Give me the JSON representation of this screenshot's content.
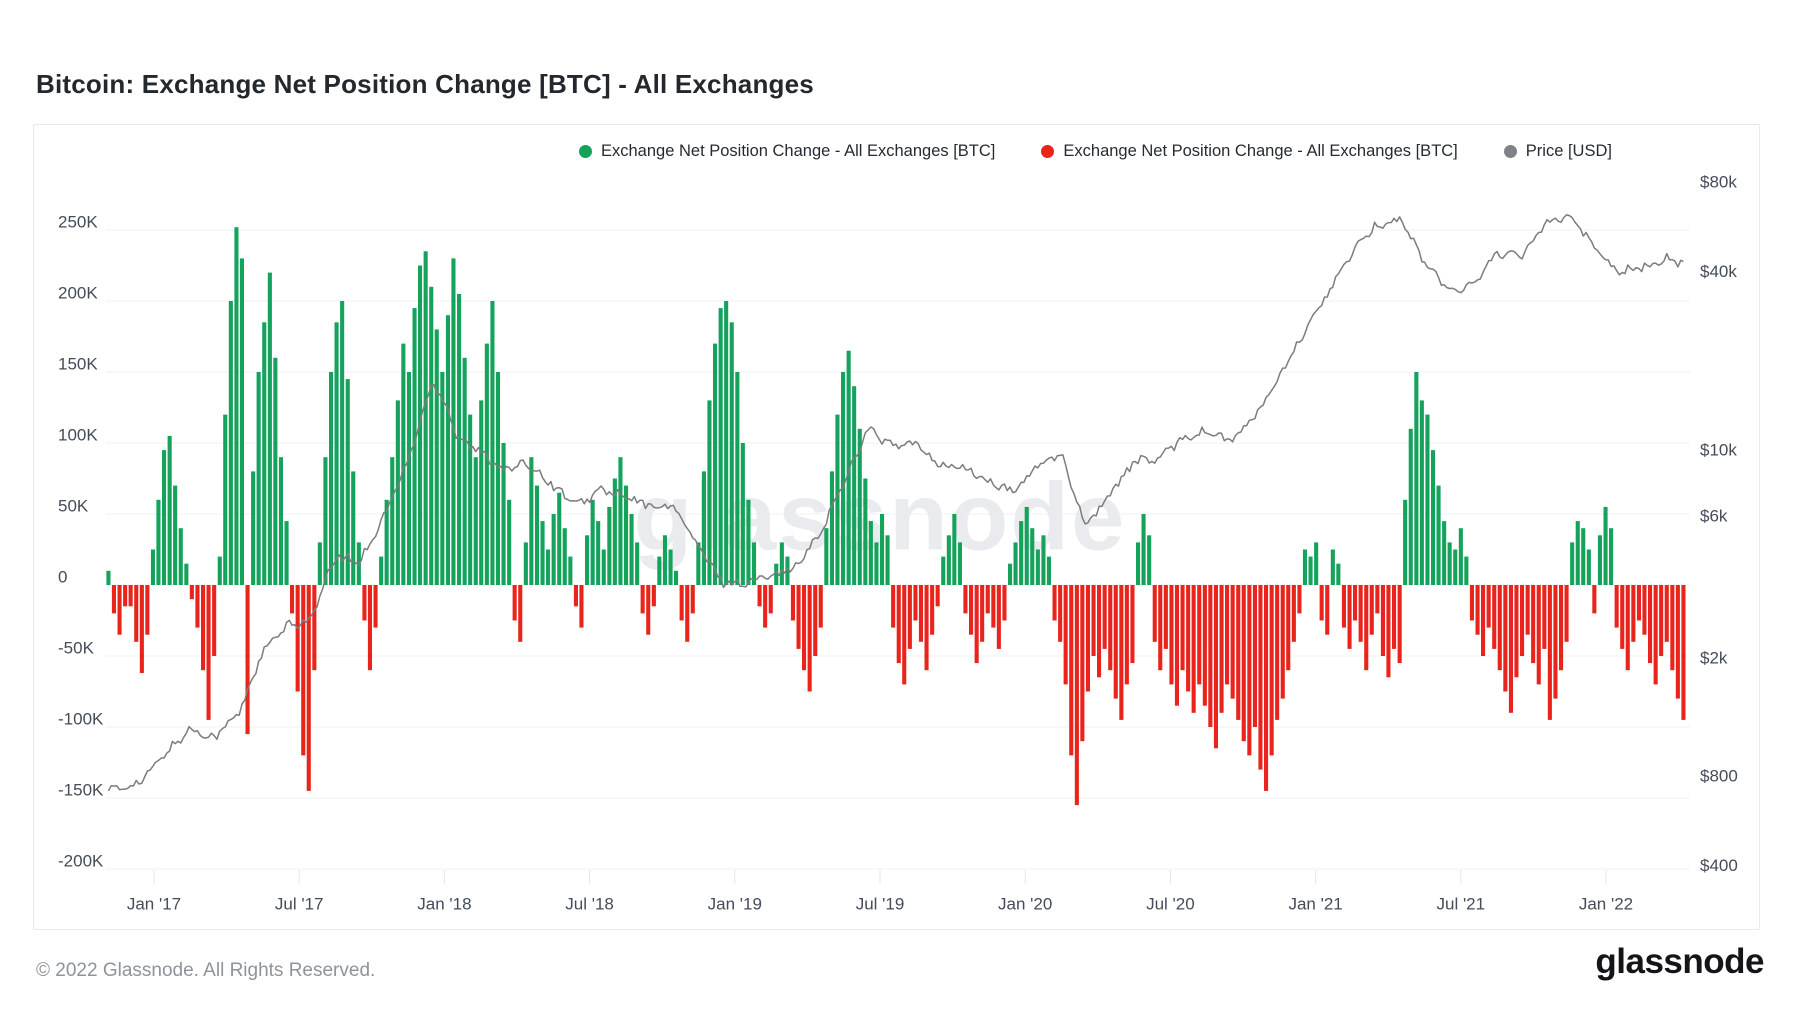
{
  "page": {
    "title": "Bitcoin: Exchange Net Position Change [BTC] - All Exchanges"
  },
  "legend": {
    "items": [
      {
        "label": "Exchange Net Position Change - All Exchanges [BTC]",
        "color": "#15a35c"
      },
      {
        "label": "Exchange Net Position Change - All Exchanges [BTC]",
        "color": "#e8241d"
      },
      {
        "label": "Price [USD]",
        "color": "#7f8388"
      }
    ]
  },
  "watermark": "glassnode",
  "footer": {
    "copyright": "© 2022 Glassnode. All Rights Reserved.",
    "brand": "glassnode"
  },
  "chart_data": {
    "type": "bar+line",
    "title": "Bitcoin: Exchange Net Position Change [BTC] - All Exchanges",
    "grid": true,
    "legend_position": "top",
    "left_axis": {
      "scale": "linear",
      "unit": "BTC",
      "range_k": [
        -200,
        250
      ],
      "ticks": [
        {
          "value": 250,
          "label": "250K"
        },
        {
          "value": 200,
          "label": "200K"
        },
        {
          "value": 150,
          "label": "150K"
        },
        {
          "value": 100,
          "label": "100K"
        },
        {
          "value": 50,
          "label": "50K"
        },
        {
          "value": 0,
          "label": "0"
        },
        {
          "value": -50,
          "label": "-50K"
        },
        {
          "value": -100,
          "label": "-100K"
        },
        {
          "value": -150,
          "label": "-150K"
        },
        {
          "value": -200,
          "label": "-200K"
        }
      ]
    },
    "right_axis": {
      "scale": "log",
      "unit": "USD",
      "ticks": [
        {
          "value": 80000,
          "label": "$80k"
        },
        {
          "value": 40000,
          "label": "$40k"
        },
        {
          "value": 10000,
          "label": "$10k"
        },
        {
          "value": 6000,
          "label": "$6k"
        },
        {
          "value": 2000,
          "label": "$2k"
        },
        {
          "value": 800,
          "label": "$800"
        },
        {
          "value": 400,
          "label": "$400"
        }
      ]
    },
    "x_axis": {
      "ticks": [
        {
          "t": 2017.0,
          "label": "Jan '17"
        },
        {
          "t": 2017.5,
          "label": "Jul '17"
        },
        {
          "t": 2018.0,
          "label": "Jan '18"
        },
        {
          "t": 2018.5,
          "label": "Jul '18"
        },
        {
          "t": 2019.0,
          "label": "Jan '19"
        },
        {
          "t": 2019.5,
          "label": "Jul '19"
        },
        {
          "t": 2020.0,
          "label": "Jan '20"
        },
        {
          "t": 2020.5,
          "label": "Jul '20"
        },
        {
          "t": 2021.0,
          "label": "Jan '21"
        },
        {
          "t": 2021.5,
          "label": "Jul '21"
        },
        {
          "t": 2022.0,
          "label": "Jan '22"
        }
      ]
    },
    "series": [
      {
        "name": "Exchange Net Position Change - All Exchanges [BTC]",
        "type": "bar",
        "axis": "left",
        "unit": "thousand BTC per week",
        "positive_color": "#15a35c",
        "negative_color": "#e8241d",
        "start_year": 2016.843,
        "interval_years": 0.019165,
        "values_k_btc": [
          10,
          -20,
          -35,
          -15,
          -15,
          -40,
          -62,
          -35,
          25,
          60,
          95,
          105,
          70,
          40,
          15,
          -10,
          -30,
          -60,
          -95,
          -50,
          20,
          120,
          200,
          252,
          230,
          -105,
          80,
          150,
          185,
          220,
          160,
          90,
          45,
          -20,
          -75,
          -120,
          -145,
          -60,
          30,
          90,
          150,
          185,
          200,
          145,
          80,
          30,
          -25,
          -60,
          -30,
          20,
          60,
          90,
          130,
          170,
          150,
          195,
          225,
          235,
          210,
          180,
          150,
          190,
          230,
          205,
          160,
          120,
          90,
          130,
          170,
          200,
          150,
          100,
          60,
          -25,
          -40,
          30,
          90,
          70,
          45,
          25,
          50,
          65,
          40,
          20,
          -15,
          -30,
          35,
          60,
          45,
          25,
          55,
          75,
          90,
          70,
          50,
          30,
          -20,
          -35,
          -15,
          20,
          35,
          25,
          10,
          -25,
          -40,
          -20,
          30,
          80,
          130,
          170,
          195,
          200,
          185,
          150,
          100,
          60,
          30,
          -15,
          -30,
          -20,
          15,
          30,
          20,
          -25,
          -45,
          -60,
          -75,
          -50,
          -30,
          40,
          80,
          120,
          150,
          165,
          140,
          110,
          75,
          45,
          30,
          50,
          35,
          -30,
          -55,
          -70,
          -45,
          -25,
          -40,
          -60,
          -35,
          -15,
          20,
          35,
          50,
          30,
          -20,
          -35,
          -55,
          -40,
          -20,
          -30,
          -45,
          -25,
          15,
          30,
          45,
          55,
          40,
          25,
          35,
          20,
          -25,
          -40,
          -70,
          -120,
          -155,
          -110,
          -75,
          -50,
          -65,
          -45,
          -60,
          -80,
          -95,
          -70,
          -55,
          30,
          50,
          35,
          -40,
          -60,
          -45,
          -70,
          -85,
          -60,
          -75,
          -90,
          -70,
          -85,
          -100,
          -115,
          -90,
          -70,
          -80,
          -95,
          -110,
          -120,
          -100,
          -130,
          -145,
          -120,
          -95,
          -80,
          -60,
          -40,
          -20,
          25,
          20,
          30,
          -25,
          -35,
          25,
          15,
          -30,
          -45,
          -25,
          -40,
          -60,
          -35,
          -20,
          -50,
          -65,
          -45,
          -55,
          60,
          110,
          150,
          130,
          120,
          95,
          70,
          45,
          30,
          25,
          40,
          20,
          -25,
          -35,
          -50,
          -30,
          -45,
          -60,
          -75,
          -90,
          -65,
          -50,
          -35,
          -55,
          -70,
          -45,
          -95,
          -80,
          -60,
          -40,
          30,
          45,
          40,
          25,
          -20,
          35,
          55,
          40,
          -30,
          -45,
          -60,
          -40,
          -25,
          -35,
          -55,
          -70,
          -50,
          -40,
          -60,
          -80,
          -95
        ]
      },
      {
        "name": "Price [USD]",
        "type": "line",
        "axis": "right",
        "color": "#7c7c7c",
        "anchors_year_usd": [
          [
            2016.875,
            720
          ],
          [
            2016.958,
            770
          ],
          [
            2017.042,
            960
          ],
          [
            2017.125,
            1150
          ],
          [
            2017.208,
            1080
          ],
          [
            2017.292,
            1300
          ],
          [
            2017.375,
            2100
          ],
          [
            2017.458,
            2550
          ],
          [
            2017.542,
            2700
          ],
          [
            2017.625,
            4400
          ],
          [
            2017.708,
            4200
          ],
          [
            2017.792,
            6000
          ],
          [
            2017.875,
            9200
          ],
          [
            2017.958,
            17000
          ],
          [
            2018.01,
            14000
          ],
          [
            2018.042,
            11200
          ],
          [
            2018.125,
            9800
          ],
          [
            2018.208,
            8600
          ],
          [
            2018.292,
            9000
          ],
          [
            2018.375,
            7600
          ],
          [
            2018.458,
            6500
          ],
          [
            2018.542,
            7400
          ],
          [
            2018.625,
            6900
          ],
          [
            2018.708,
            6500
          ],
          [
            2018.792,
            6450
          ],
          [
            2018.875,
            4700
          ],
          [
            2018.958,
            3600
          ],
          [
            2019.042,
            3550
          ],
          [
            2019.125,
            3850
          ],
          [
            2019.208,
            4000
          ],
          [
            2019.292,
            5200
          ],
          [
            2019.375,
            7800
          ],
          [
            2019.458,
            11800
          ],
          [
            2019.542,
            10300
          ],
          [
            2019.625,
            10500
          ],
          [
            2019.708,
            8900
          ],
          [
            2019.792,
            8700
          ],
          [
            2019.875,
            7800
          ],
          [
            2019.958,
            7200
          ],
          [
            2020.042,
            8900
          ],
          [
            2020.125,
            9600
          ],
          [
            2020.208,
            5600
          ],
          [
            2020.292,
            7100
          ],
          [
            2020.375,
            9200
          ],
          [
            2020.458,
            9300
          ],
          [
            2020.542,
            11000
          ],
          [
            2020.625,
            11600
          ],
          [
            2020.708,
            10700
          ],
          [
            2020.792,
            13000
          ],
          [
            2020.875,
            17500
          ],
          [
            2020.958,
            24500
          ],
          [
            2021.042,
            34000
          ],
          [
            2021.125,
            46000
          ],
          [
            2021.208,
            57000
          ],
          [
            2021.292,
            60000
          ],
          [
            2021.375,
            43000
          ],
          [
            2021.458,
            34500
          ],
          [
            2021.542,
            36000
          ],
          [
            2021.625,
            46500
          ],
          [
            2021.708,
            44500
          ],
          [
            2021.792,
            59000
          ],
          [
            2021.875,
            62000
          ],
          [
            2021.958,
            48500
          ],
          [
            2022.042,
            40000
          ],
          [
            2022.125,
            41000
          ],
          [
            2022.208,
            44500
          ],
          [
            2022.292,
            41500
          ],
          [
            2022.375,
            38500
          ]
        ]
      }
    ]
  }
}
